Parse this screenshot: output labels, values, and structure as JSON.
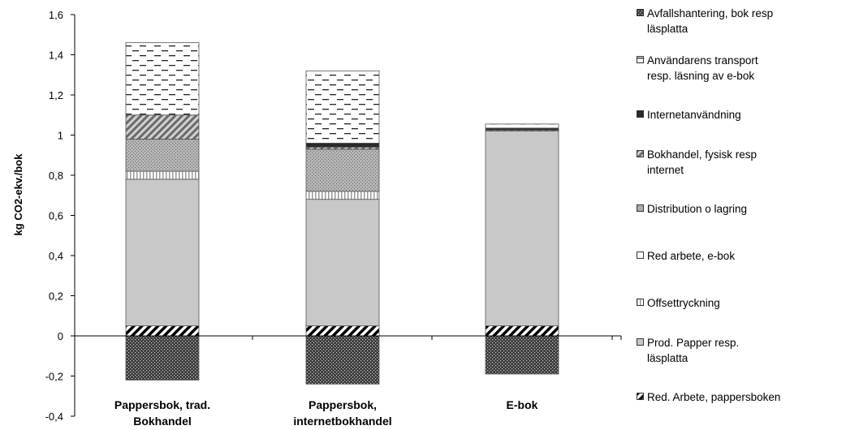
{
  "chart_data": {
    "type": "bar",
    "stacked": true,
    "title": "",
    "xlabel": "",
    "ylabel": "kg CO2-ekv./bok",
    "ylim": [
      -0.4,
      1.6
    ],
    "yticks": [
      "-0,4",
      "-0,2",
      "0",
      "0,2",
      "0,4",
      "0,6",
      "0,8",
      "1",
      "1,2",
      "1,4",
      "1,6"
    ],
    "categories": [
      "Pappersbok, trad. Bokhandel",
      "Pappersbok, internetbokhandel",
      "E-bok"
    ],
    "category_lines": [
      [
        "Pappersbok, trad.",
        "Bokhandel"
      ],
      [
        "Pappersbok,",
        "internetbokhandel"
      ],
      [
        "E-bok"
      ]
    ],
    "legend_position": "right",
    "series": [
      {
        "name": "Red. Arbete, pappersboken",
        "values": [
          0.05,
          0.05,
          0.05
        ],
        "pattern": "diag-white",
        "color": "#ffffff"
      },
      {
        "name": "Prod. Papper resp. läsplatta",
        "values": [
          0.73,
          0.63,
          0.97
        ],
        "pattern": "solid",
        "color": "#c8c8c8"
      },
      {
        "name": "Offsettryckning",
        "values": [
          0.04,
          0.04,
          0.0
        ],
        "pattern": "stripes",
        "color": "#ffffff"
      },
      {
        "name": "Red arbete, e-bok",
        "values": [
          0.0,
          0.0,
          0.0
        ],
        "pattern": "solid",
        "color": "#ffffff"
      },
      {
        "name": "Distribution o lagring",
        "values": [
          0.16,
          0.21,
          0.0
        ],
        "pattern": "dots",
        "color": "#a8a8a8"
      },
      {
        "name": "Bokhandel, fysisk resp internet",
        "values": [
          0.12,
          0.01,
          0.005
        ],
        "pattern": "diag-gray",
        "color": "#8c8c8c"
      },
      {
        "name": "Internetanvändning",
        "values": [
          0.0,
          0.02,
          0.01
        ],
        "pattern": "solid",
        "color": "#3a3a3a"
      },
      {
        "name": "Användarens transport resp. läsning av e-bok",
        "values": [
          0.36,
          0.36,
          0.02
        ],
        "pattern": "dashes",
        "color": "#ffffff"
      },
      {
        "name": "Avfallshantering, bok resp läsplatta",
        "values": [
          -0.22,
          -0.24,
          -0.19
        ],
        "pattern": "dark-dots",
        "color": "#3a3a3a"
      }
    ],
    "legend_order": [
      {
        "lines": [
          "Avfallshantering, bok resp",
          "läsplatta"
        ],
        "series": 8
      },
      {
        "lines": [
          "Användarens transport",
          "resp. läsning av e-bok"
        ],
        "series": 7
      },
      {
        "lines": [
          "Internetanvändning"
        ],
        "series": 6
      },
      {
        "lines": [
          "Bokhandel, fysisk resp",
          "internet"
        ],
        "series": 5
      },
      {
        "lines": [
          "Distribution o lagring"
        ],
        "series": 4
      },
      {
        "lines": [
          "Red arbete, e-bok"
        ],
        "series": 3
      },
      {
        "lines": [
          "Offsettryckning"
        ],
        "series": 2
      },
      {
        "lines": [
          "Prod. Papper resp.",
          "läsplatta"
        ],
        "series": 1
      },
      {
        "lines": [
          "Red. Arbete, pappersboken"
        ],
        "series": 0
      }
    ]
  }
}
